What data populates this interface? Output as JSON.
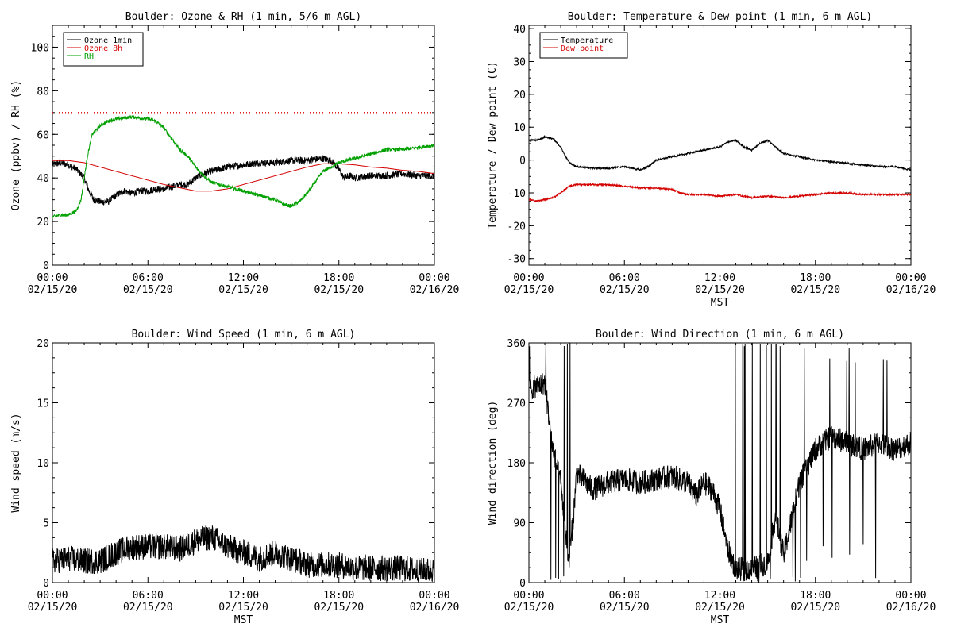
{
  "colors": {
    "black": "#000000",
    "red": "#d40000",
    "green": "#00a000"
  },
  "x_ticks": [
    {
      "time": "00:00",
      "date": "02/15/20"
    },
    {
      "time": "06:00",
      "date": "02/15/20"
    },
    {
      "time": "12:00",
      "date": "02/15/20"
    },
    {
      "time": "18:00",
      "date": "02/15/20"
    },
    {
      "time": "00:00",
      "date": "02/16/20"
    }
  ],
  "chart_data": [
    {
      "type": "line",
      "title": "Boulder: Ozone & RH (1 min, 5/6 m AGL)",
      "xlabel": "",
      "ylabel": "Ozone (ppbv) / RH (%)",
      "x_unit_hours": true,
      "xlim": [
        0,
        24
      ],
      "ylim": [
        0,
        110
      ],
      "y_ticks": [
        0,
        20,
        40,
        60,
        80,
        100
      ],
      "legend_position": "top-left",
      "reference_line": {
        "y": 70,
        "style": "dotted",
        "color": "#d40000"
      },
      "series": [
        {
          "name": "Ozone 1min",
          "color": "#000000",
          "noise": 1.6,
          "x": [
            0,
            0.5,
            1,
            1.5,
            2,
            2.3,
            2.6,
            3,
            3.5,
            4,
            4.5,
            5,
            5.5,
            6,
            6.5,
            7,
            7.5,
            8,
            8.5,
            9,
            9.5,
            10,
            11,
            12,
            13,
            14,
            15,
            16,
            17,
            17.5,
            18,
            18.3,
            18.7,
            19,
            20,
            21,
            22,
            23,
            24
          ],
          "y": [
            46,
            47,
            46,
            44,
            40,
            34,
            30,
            29,
            29,
            32,
            34,
            33,
            34,
            34,
            35,
            35,
            36,
            37,
            37,
            40,
            42,
            43,
            45,
            46,
            47,
            47,
            48,
            48,
            49,
            48,
            44,
            40,
            41,
            40,
            41,
            41,
            42,
            41,
            41
          ]
        },
        {
          "name": "Ozone 8h",
          "color": "#d40000",
          "noise": 0,
          "x": [
            0,
            1,
            2,
            3,
            4,
            5,
            6,
            7,
            8,
            9,
            10,
            11,
            12,
            13,
            14,
            15,
            16,
            17,
            18,
            19,
            20,
            21,
            22,
            23,
            24
          ],
          "y": [
            48,
            48,
            47,
            45,
            43,
            41,
            39,
            37,
            35.5,
            34,
            34,
            35,
            37,
            39,
            41,
            43,
            45,
            46.5,
            46.5,
            46,
            45,
            44.5,
            43.5,
            43,
            42
          ]
        },
        {
          "name": "RH",
          "color": "#00a000",
          "noise": 0.8,
          "x": [
            0,
            0.5,
            1,
            1.5,
            1.8,
            2,
            2.2,
            2.5,
            3,
            3.5,
            4,
            5,
            6,
            6.5,
            7,
            7.5,
            8,
            8.5,
            9,
            9.5,
            10,
            11,
            12,
            13,
            14,
            14.5,
            15,
            15.5,
            16,
            16.5,
            17,
            17.5,
            18,
            19,
            20,
            21,
            22,
            23,
            24
          ],
          "y": [
            22,
            23,
            23,
            25,
            30,
            40,
            50,
            60,
            64,
            66,
            67,
            68,
            67,
            66,
            63,
            58,
            53,
            50,
            45,
            41,
            38,
            36,
            34,
            32,
            30,
            28,
            27,
            29,
            33,
            38,
            43,
            45,
            47,
            49,
            51,
            53,
            53,
            54,
            55
          ]
        }
      ]
    },
    {
      "type": "line",
      "title": "Boulder: Temperature & Dew point (1 min, 6 m AGL)",
      "xlabel": "MST",
      "ylabel": "Temperature / Dew point (C)",
      "xlim": [
        0,
        24
      ],
      "ylim": [
        -32,
        41
      ],
      "y_ticks": [
        -30,
        -20,
        -10,
        0,
        10,
        20,
        30,
        40
      ],
      "legend_position": "top-left",
      "series": [
        {
          "name": "Temperature",
          "color": "#000000",
          "noise": 0.25,
          "x": [
            0,
            0.5,
            1,
            1.5,
            2,
            2.3,
            2.6,
            3,
            4,
            5,
            6,
            6.5,
            7,
            7.5,
            8,
            9,
            10,
            11,
            12,
            12.5,
            13,
            13.5,
            14,
            14.5,
            15,
            15.5,
            16,
            17,
            18,
            19,
            20,
            21,
            22,
            23,
            24
          ],
          "y": [
            6,
            6,
            7,
            6.5,
            4,
            1,
            -1,
            -2,
            -2.5,
            -2.5,
            -2,
            -2.5,
            -3,
            -2,
            0,
            1,
            2,
            3,
            4,
            5.5,
            6,
            4,
            3,
            5,
            6,
            4,
            2,
            1,
            0,
            -0.5,
            -1,
            -1.5,
            -2,
            -2,
            -3
          ]
        },
        {
          "name": "Dew point",
          "color": "#d40000",
          "noise": 0.25,
          "x": [
            0,
            0.5,
            1,
            1.5,
            2,
            2.5,
            3,
            4,
            5,
            6,
            7,
            8,
            9,
            9.5,
            10,
            11,
            12,
            13,
            14,
            15,
            16,
            17,
            18,
            19,
            20,
            21,
            22,
            23,
            24
          ],
          "y": [
            -12,
            -12.5,
            -12,
            -11.5,
            -10,
            -8,
            -7.5,
            -7.5,
            -7.5,
            -8,
            -8.5,
            -8.5,
            -9,
            -10,
            -10.5,
            -10.5,
            -11,
            -10.5,
            -11.5,
            -11,
            -11.5,
            -11,
            -10.5,
            -10,
            -10,
            -10.5,
            -10.5,
            -10.5,
            -10.5
          ]
        }
      ]
    },
    {
      "type": "line",
      "title": "Boulder: Wind Speed (1 min, 6 m AGL)",
      "xlabel": "MST",
      "ylabel": "Wind speed (m/s)",
      "xlim": [
        0,
        24
      ],
      "ylim": [
        0,
        20
      ],
      "y_ticks": [
        0,
        5,
        10,
        15,
        20
      ],
      "series": [
        {
          "name": "",
          "color": "#000000",
          "noise": 1.1,
          "x": [
            0,
            1,
            2,
            3,
            4,
            5,
            6,
            7,
            8,
            9,
            10,
            11,
            12,
            13,
            14,
            15,
            16,
            17,
            18,
            19,
            20,
            21,
            22,
            23,
            24
          ],
          "y": [
            1.8,
            2,
            1.8,
            1.8,
            2.5,
            3,
            3,
            3,
            2.8,
            3.5,
            3.8,
            3,
            2.5,
            2,
            2.5,
            2,
            1.5,
            1.5,
            1.5,
            1.2,
            1.2,
            1.2,
            1.2,
            1,
            1
          ]
        }
      ]
    },
    {
      "type": "line",
      "title": "Boulder: Wind Direction (1 min, 6 m AGL)",
      "xlabel": "MST",
      "ylabel": "Wind direction (deg)",
      "xlim": [
        0,
        24
      ],
      "ylim": [
        0,
        360
      ],
      "y_ticks": [
        0,
        90,
        180,
        270,
        360
      ],
      "series": [
        {
          "name": "",
          "color": "#000000",
          "noise": 18,
          "x": [
            0,
            1,
            1.5,
            2,
            2.5,
            2.8,
            3,
            4,
            5,
            6,
            7,
            8,
            9,
            10,
            10.5,
            11,
            11.5,
            12,
            12.5,
            13,
            14,
            15,
            15.5,
            16,
            17,
            18,
            19,
            20,
            21,
            22,
            23,
            24
          ],
          "y": [
            290,
            300,
            200,
            150,
            30,
            100,
            165,
            140,
            150,
            155,
            150,
            155,
            160,
            150,
            130,
            150,
            140,
            110,
            50,
            20,
            20,
            30,
            100,
            40,
            150,
            200,
            220,
            210,
            200,
            210,
            200,
            210
          ]
        }
      ]
    }
  ]
}
